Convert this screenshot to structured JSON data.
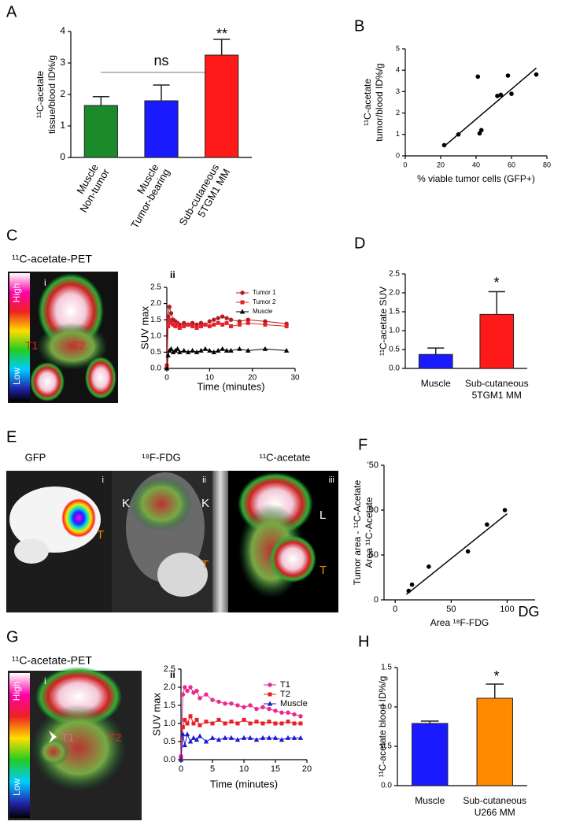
{
  "panels": [
    "A",
    "B",
    "C",
    "D",
    "E",
    "F",
    "G",
    "H"
  ],
  "images": {
    "c": {
      "title": "¹¹C-acetate-PET",
      "panel": "i",
      "scale_high": "High",
      "scale_low": "Low",
      "labels": [
        "T1",
        "T2"
      ]
    },
    "e": {
      "titles": [
        "GFP",
        "¹⁸F-FDG",
        "¹¹C-acetate"
      ],
      "panels": [
        "i",
        "ii",
        "iii"
      ],
      "labels": [
        "T",
        "K",
        "K",
        "T",
        "L",
        "T"
      ]
    },
    "g": {
      "title": "¹¹C-acetate-PET",
      "panel": "i",
      "scale_high": "High",
      "scale_low": "Low",
      "labels": [
        "T1",
        "T2"
      ]
    }
  },
  "chart_data": [
    {
      "type": "bar",
      "ylabel": [
        "¹¹C-acetate",
        "tissue/blood ID%/g"
      ],
      "categories": [
        [
          "Muscle",
          "Non-tumor"
        ],
        [
          "Muscle",
          "Tumor-bearing"
        ],
        [
          "Sub-cutaneous",
          "5TGM1 MM"
        ]
      ],
      "values": [
        1.65,
        1.8,
        3.25
      ],
      "errors": [
        0.28,
        0.5,
        0.5
      ],
      "colors": [
        "#1a8a2a",
        "#1a1aff",
        "#ff1a1a"
      ],
      "ylim": [
        0,
        4
      ],
      "yticks": [
        0,
        1,
        2,
        3,
        4
      ],
      "annotations": [
        "ns",
        "**"
      ]
    },
    {
      "type": "scatter",
      "xlabel": "% viable tumor cells (GFP+)",
      "ylabel": [
        "¹¹C-acetate",
        "tumor/blood ID%/g"
      ],
      "x": [
        22,
        30,
        41,
        42,
        43,
        52,
        54,
        58,
        60,
        74
      ],
      "values": [
        0.5,
        1.0,
        3.7,
        1.05,
        1.2,
        2.8,
        2.85,
        3.75,
        2.9,
        3.8
      ],
      "fit": {
        "x": [
          22,
          74
        ],
        "y": [
          0.45,
          4.1
        ]
      },
      "color": "#000000",
      "xlim": [
        0,
        80
      ],
      "xticks": [
        0,
        20,
        40,
        60,
        80
      ],
      "ylim": [
        0,
        5
      ],
      "yticks": [
        0,
        1,
        2,
        3,
        4,
        5
      ]
    },
    {
      "type": "line",
      "panel": "ii",
      "xlabel": "Time (minutes)",
      "ylabel": [
        "SUV max"
      ],
      "x": [
        0,
        0.3,
        0.6,
        1,
        1.5,
        2,
        2.5,
        3,
        4,
        5,
        6,
        7,
        8,
        9,
        10,
        11,
        12,
        13,
        14,
        15,
        17,
        19,
        23,
        28
      ],
      "series": [
        {
          "name": "Tumor 1",
          "color": "#b01e23",
          "marker": "circle",
          "values": [
            0.1,
            1.6,
            1.9,
            1.7,
            1.5,
            1.45,
            1.4,
            1.35,
            1.4,
            1.35,
            1.4,
            1.35,
            1.4,
            1.35,
            1.45,
            1.5,
            1.55,
            1.6,
            1.55,
            1.5,
            1.45,
            1.5,
            1.45,
            1.38
          ]
        },
        {
          "name": "Tumor 2",
          "color": "#e8202a",
          "marker": "square",
          "values": [
            0.05,
            1.3,
            1.5,
            1.4,
            1.35,
            1.3,
            1.35,
            1.25,
            1.3,
            1.35,
            1.3,
            1.25,
            1.3,
            1.35,
            1.3,
            1.35,
            1.4,
            1.35,
            1.4,
            1.3,
            1.35,
            1.4,
            1.35,
            1.3
          ]
        },
        {
          "name": "Muscle",
          "color": "#000000",
          "marker": "triangle",
          "values": [
            0,
            0.4,
            0.55,
            0.6,
            0.5,
            0.55,
            0.6,
            0.5,
            0.55,
            0.5,
            0.55,
            0.5,
            0.55,
            0.6,
            0.55,
            0.5,
            0.55,
            0.6,
            0.55,
            0.55,
            0.6,
            0.55,
            0.6,
            0.55
          ]
        }
      ],
      "xlim": [
        0,
        30
      ],
      "xticks": [
        0,
        10,
        20,
        30
      ],
      "ylim": [
        0,
        2.5
      ],
      "yticks": [
        {
          "value": 0,
          "label": "0.0"
        },
        0.5,
        {
          "value": 1,
          "label": "1.0"
        },
        1.5,
        {
          "value": 2,
          "label": "2.0"
        },
        2.5
      ]
    },
    {
      "type": "bar",
      "ylabel": [
        "¹¹C-acetate SUV"
      ],
      "categories": [
        [
          "Muscle"
        ],
        [
          "Sub-cutaneous",
          "5TGM1 MM"
        ]
      ],
      "values": [
        0.37,
        1.43
      ],
      "errors": [
        0.17,
        0.6
      ],
      "colors": [
        "#1a1aff",
        "#ff1a1a"
      ],
      "ylim": [
        0,
        2.5
      ],
      "yticks": [
        {
          "value": 0,
          "label": "0.0"
        },
        0.5,
        {
          "value": 1,
          "label": "1.0"
        },
        1.5,
        {
          "value": 2,
          "label": "2.0"
        },
        2.5
      ],
      "annotations": [
        "*"
      ]
    },
    {
      "type": "scatter",
      "xlabel": "Area ¹⁸F-FDG",
      "ylabel": [
        "Tumor area - ¹¹C-Acetate",
        "Area ¹¹C-Acetate"
      ],
      "x": [
        12,
        15,
        30,
        65,
        82,
        98
      ],
      "values": [
        10,
        17,
        37,
        54,
        84,
        100
      ],
      "fit": {
        "x": [
          10,
          100
        ],
        "y": [
          6,
          96
        ]
      },
      "color": "#000000",
      "xlim": [
        -10,
        125
      ],
      "xticks": [
        0,
        50,
        100
      ],
      "ylim": [
        0,
        150
      ],
      "yticks": [
        0,
        50,
        {
          "value": 100,
          "label": "00"
        },
        {
          "value": 150,
          "label": "'50"
        }
      ],
      "annotations": [
        "DG"
      ]
    },
    {
      "type": "line",
      "panel": "ii",
      "xlabel": "Time (minutes)",
      "ylabel": [
        "SUV max"
      ],
      "x": [
        0,
        0.3,
        0.6,
        1,
        1.5,
        2,
        2.5,
        3,
        4,
        5,
        6,
        7,
        8,
        9,
        10,
        11,
        12,
        13,
        14,
        15,
        16,
        17,
        18,
        19
      ],
      "series": [
        {
          "name": "T1",
          "color": "#ea2a8c",
          "marker": "circle",
          "values": [
            0.1,
            1.8,
            2.0,
            1.9,
            2.0,
            1.85,
            1.9,
            1.7,
            1.8,
            1.65,
            1.6,
            1.55,
            1.55,
            1.5,
            1.45,
            1.5,
            1.4,
            1.45,
            1.4,
            1.35,
            1.3,
            1.3,
            1.25,
            1.2
          ]
        },
        {
          "name": "T2",
          "color": "#e8202a",
          "marker": "square",
          "values": [
            0.05,
            0.9,
            1.1,
            1.0,
            1.2,
            1.0,
            1.1,
            0.95,
            1.05,
            1.0,
            1.1,
            1.0,
            1.05,
            1.0,
            1.1,
            1.0,
            1.05,
            1.0,
            1.05,
            1.0,
            1.0,
            1.05,
            1.0,
            1.0
          ]
        },
        {
          "name": "Muscle",
          "color": "#1a1acc",
          "marker": "triangle",
          "values": [
            0,
            0.7,
            0.4,
            0.7,
            0.5,
            0.6,
            0.55,
            0.65,
            0.5,
            0.6,
            0.55,
            0.6,
            0.6,
            0.55,
            0.6,
            0.6,
            0.55,
            0.6,
            0.6,
            0.6,
            0.55,
            0.6,
            0.6,
            0.6
          ]
        }
      ],
      "xlim": [
        0,
        20
      ],
      "xticks": [
        0,
        5,
        10,
        15,
        20
      ],
      "ylim": [
        0,
        2.5
      ],
      "yticks": [
        {
          "value": 0,
          "label": "0.0"
        },
        0.5,
        {
          "value": 1,
          "label": "1.0"
        },
        1.5,
        {
          "value": 2,
          "label": "2.0"
        },
        2.5
      ]
    },
    {
      "type": "bar",
      "ylabel": [
        "¹¹C-acetate blood ID%/g"
      ],
      "categories": [
        [
          "Muscle"
        ],
        [
          "Sub-cutaneous",
          "U266  MM"
        ]
      ],
      "values": [
        0.79,
        1.11
      ],
      "errors": [
        0.03,
        0.18
      ],
      "colors": [
        "#1a1aff",
        "#ff8a00"
      ],
      "ylim": [
        0,
        1.5
      ],
      "yticks": [
        {
          "value": 0,
          "label": "0.0"
        },
        0.5,
        {
          "value": 1,
          "label": "1.0"
        },
        1.5
      ],
      "annotations": [
        "*"
      ]
    }
  ]
}
